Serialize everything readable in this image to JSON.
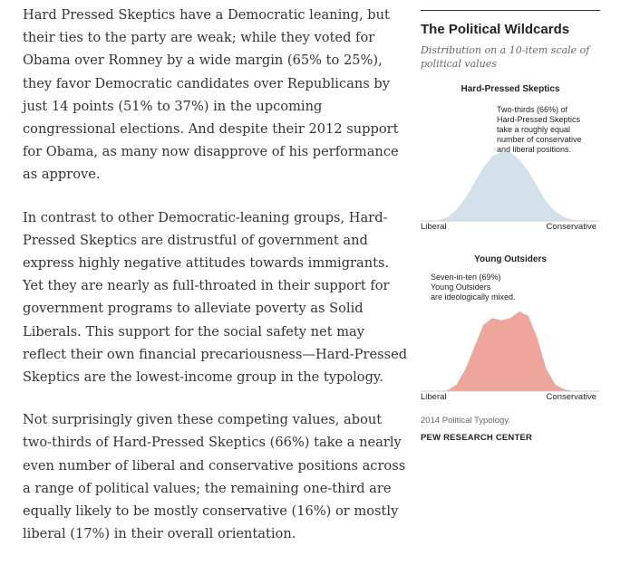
{
  "article": {
    "paragraphs": [
      "Hard Pressed Skeptics have a Democratic leaning, but their ties to the party are weak; while they voted for Obama over Romney by a wide margin (65% to 25%), they favor Democratic candidates over Republicans by just 14 points (51% to 37%) in the upcoming congressional elections. And despite their 2012 support for Obama, as many now disapprove of his performance as approve.",
      "In contrast to other Democratic-leaning groups, Hard-Pressed Skeptics are distrustful of government and express highly negative attitudes towards immigrants. Yet they are nearly as full-throated in their support for government programs to alleviate poverty as Solid Liberals. This support for the social safety net may reflect their own financial precariousness—Hard-Pressed Skeptics are the lowest-income group in the typology.",
      "Not surprisingly given these competing values, about two-thirds of Hard-Pressed Skeptics (66%) take a nearly even number of liberal and conservative positions across a range of political values; the remaining one-third are equally likely to be mostly conservative (16%) or mostly liberal (17%) in their overall orientation."
    ]
  },
  "sidebar": {
    "title": "The Political Wildcards",
    "subtitle": "Distribution on a 10-item scale of political values",
    "source": "2014 Political Typology.",
    "brand": "PEW RESEARCH CENTER"
  },
  "chart_data": [
    {
      "type": "area",
      "title": "Hard-Pressed Skeptics",
      "color": "#d3e1ea",
      "x": [
        -10,
        -9,
        -8,
        -7,
        -6,
        -5,
        -4,
        -3,
        -2,
        -1,
        0,
        1,
        2,
        3,
        4,
        5,
        6,
        7,
        8,
        9,
        10
      ],
      "values": [
        0,
        0,
        0.2,
        1,
        3,
        6,
        10,
        14,
        17,
        18,
        18,
        16,
        13,
        9,
        5,
        2.5,
        1,
        0.3,
        0,
        0,
        0
      ],
      "xlabel_left": "Liberal",
      "xlabel_right": "Conservative",
      "annotation_lines": [
        "Two-thirds (66%) of",
        "Hard-Pressed Skeptics",
        "take a roughly equal",
        "number of conservative",
        "and liberal positions."
      ]
    },
    {
      "type": "area",
      "title": "Young Outsiders",
      "color": "#eda59c",
      "x": [
        -10,
        -9,
        -8,
        -7,
        -6,
        -5,
        -4,
        -3,
        -2,
        -1,
        0,
        1,
        2,
        3,
        4,
        5,
        6,
        7,
        8,
        9,
        10
      ],
      "values": [
        0,
        0,
        0,
        0.2,
        1.5,
        5,
        10,
        15,
        16.5,
        16,
        16.5,
        18,
        17,
        12,
        5,
        1.5,
        0.4,
        0,
        0,
        0,
        0
      ],
      "xlabel_left": "Liberal",
      "xlabel_right": "Conservative",
      "annotation_lines": [
        "Seven-in-ten (69%)",
        "Young Outsiders",
        "are ideologically mixed."
      ]
    }
  ]
}
